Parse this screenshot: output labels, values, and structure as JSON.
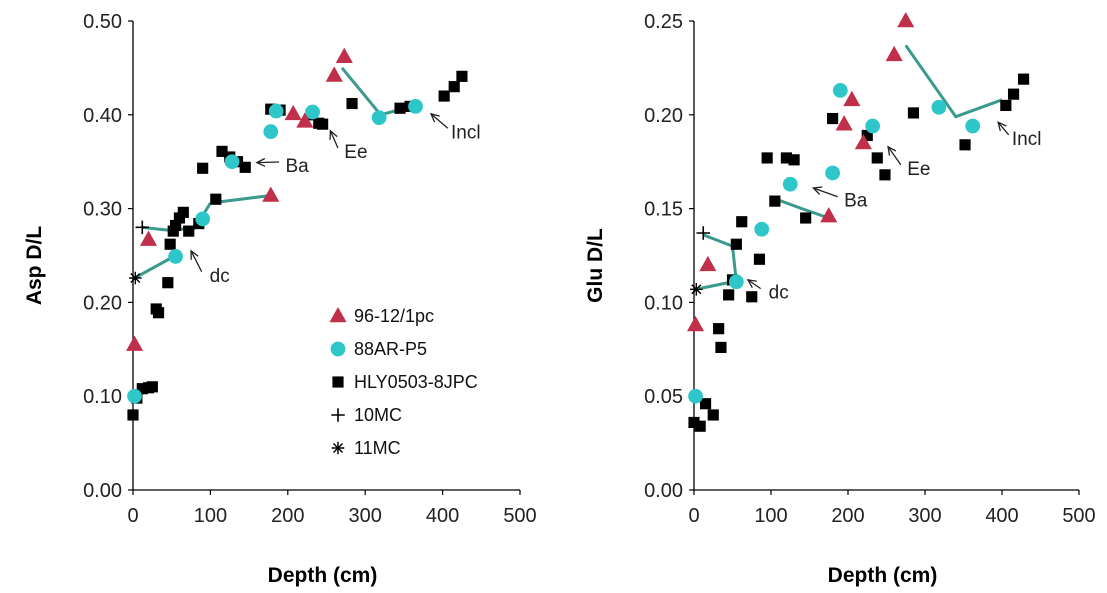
{
  "chart_data": [
    {
      "type": "scatter",
      "xlabel": "Depth (cm)",
      "ylabel": "Asp D/L",
      "xlim": [
        0,
        500
      ],
      "ylim": [
        0.0,
        0.5
      ],
      "x_ticks": [
        0,
        100,
        200,
        300,
        400,
        500
      ],
      "y_ticks": [
        "0.00",
        "0.10",
        "0.20",
        "0.30",
        "0.40",
        "0.50"
      ],
      "grid": false,
      "legend_position": "bottom-right",
      "series": [
        {
          "name": "96-12/1pc",
          "marker": "triangle",
          "color": "#c0304a",
          "points": [
            [
              2,
              0.155
            ],
            [
              20,
              0.267
            ],
            [
              178,
              0.314
            ],
            [
              207,
              0.401
            ],
            [
              222,
              0.393
            ],
            [
              260,
              0.442
            ],
            [
              273,
              0.462
            ]
          ]
        },
        {
          "name": "88AR-P5",
          "marker": "circle",
          "color": "#2ec6c8",
          "points": [
            [
              2,
              0.1
            ],
            [
              55,
              0.249
            ],
            [
              90,
              0.289
            ],
            [
              128,
              0.35
            ],
            [
              178,
              0.382
            ],
            [
              185,
              0.404
            ],
            [
              232,
              0.403
            ],
            [
              318,
              0.397
            ],
            [
              365,
              0.409
            ]
          ]
        },
        {
          "name": "HLY0503-8JPC",
          "marker": "square",
          "color": "#000000",
          "points": [
            [
              0,
              0.08
            ],
            [
              5,
              0.098
            ],
            [
              12,
              0.108
            ],
            [
              20,
              0.109
            ],
            [
              25,
              0.11
            ],
            [
              30,
              0.193
            ],
            [
              33,
              0.189
            ],
            [
              45,
              0.221
            ],
            [
              48,
              0.262
            ],
            [
              52,
              0.276
            ],
            [
              55,
              0.282
            ],
            [
              60,
              0.29
            ],
            [
              65,
              0.296
            ],
            [
              72,
              0.276
            ],
            [
              85,
              0.284
            ],
            [
              90,
              0.343
            ],
            [
              107,
              0.31
            ],
            [
              115,
              0.361
            ],
            [
              125,
              0.355
            ],
            [
              135,
              0.35
            ],
            [
              145,
              0.344
            ],
            [
              178,
              0.406
            ],
            [
              190,
              0.405
            ],
            [
              230,
              0.4
            ],
            [
              240,
              0.391
            ],
            [
              245,
              0.39
            ],
            [
              283,
              0.412
            ],
            [
              345,
              0.407
            ],
            [
              358,
              0.409
            ],
            [
              402,
              0.42
            ],
            [
              415,
              0.43
            ],
            [
              425,
              0.441
            ]
          ]
        },
        {
          "name": "10MC",
          "marker": "plus",
          "color": "#000000",
          "points": [
            [
              12,
              0.28
            ]
          ]
        },
        {
          "name": "11MC",
          "marker": "star",
          "color": "#000000",
          "points": [
            [
              3,
              0.226
            ]
          ]
        }
      ],
      "trend_segments": [
        [
          [
            2,
            0.226
          ],
          [
            55,
            0.25
          ]
        ],
        [
          [
            12,
            0.28
          ],
          [
            45,
            0.277
          ]
        ],
        [
          [
            45,
            0.277
          ],
          [
            80,
            0.279
          ]
        ],
        [
          [
            80,
            0.279
          ],
          [
            100,
            0.306
          ]
        ],
        [
          [
            100,
            0.306
          ],
          [
            178,
            0.314
          ]
        ],
        [
          [
            270,
            0.45
          ],
          [
            320,
            0.4
          ],
          [
            365,
            0.41
          ]
        ]
      ],
      "annotations": [
        {
          "text": "dc",
          "x": 112,
          "y": 0.222,
          "arrow_to": [
            75,
            0.255
          ]
        },
        {
          "text": "Ba",
          "x": 212,
          "y": 0.339,
          "arrow_to": [
            160,
            0.349
          ]
        },
        {
          "text": "Ee",
          "x": 288,
          "y": 0.354,
          "arrow_to": [
            255,
            0.383
          ]
        },
        {
          "text": "Incl",
          "x": 430,
          "y": 0.375,
          "arrow_to": [
            385,
            0.401
          ]
        }
      ]
    },
    {
      "type": "scatter",
      "xlabel": "Depth (cm)",
      "ylabel": "Glu D/L",
      "xlim": [
        0,
        500
      ],
      "ylim": [
        0.0,
        0.25
      ],
      "x_ticks": [
        0,
        100,
        200,
        300,
        400,
        500
      ],
      "y_ticks": [
        "0.00",
        "0.05",
        "0.10",
        "0.15",
        "0.20",
        "0.25"
      ],
      "grid": false,
      "series": [
        {
          "name": "96-12/1pc",
          "marker": "triangle",
          "color": "#c0304a",
          "points": [
            [
              2,
              0.088
            ],
            [
              18,
              0.12
            ],
            [
              175,
              0.146
            ],
            [
              195,
              0.195
            ],
            [
              205,
              0.208
            ],
            [
              220,
              0.185
            ],
            [
              260,
              0.232
            ],
            [
              275,
              0.25
            ]
          ]
        },
        {
          "name": "88AR-P5",
          "marker": "circle",
          "color": "#2ec6c8",
          "points": [
            [
              2,
              0.05
            ],
            [
              55,
              0.111
            ],
            [
              88,
              0.139
            ],
            [
              125,
              0.163
            ],
            [
              180,
              0.169
            ],
            [
              190,
              0.213
            ],
            [
              232,
              0.194
            ],
            [
              318,
              0.204
            ],
            [
              362,
              0.194
            ]
          ]
        },
        {
          "name": "HLY0503-8JPC",
          "marker": "square",
          "color": "#000000",
          "points": [
            [
              0,
              0.036
            ],
            [
              8,
              0.034
            ],
            [
              15,
              0.046
            ],
            [
              25,
              0.04
            ],
            [
              32,
              0.086
            ],
            [
              35,
              0.076
            ],
            [
              45,
              0.104
            ],
            [
              50,
              0.112
            ],
            [
              55,
              0.131
            ],
            [
              62,
              0.143
            ],
            [
              75,
              0.103
            ],
            [
              85,
              0.123
            ],
            [
              95,
              0.177
            ],
            [
              105,
              0.154
            ],
            [
              120,
              0.177
            ],
            [
              130,
              0.176
            ],
            [
              145,
              0.145
            ],
            [
              180,
              0.198
            ],
            [
              225,
              0.189
            ],
            [
              238,
              0.177
            ],
            [
              248,
              0.168
            ],
            [
              285,
              0.201
            ],
            [
              352,
              0.184
            ],
            [
              405,
              0.205
            ],
            [
              415,
              0.211
            ],
            [
              428,
              0.219
            ]
          ]
        },
        {
          "name": "10MC",
          "marker": "plus",
          "color": "#000000",
          "points": [
            [
              12,
              0.137
            ]
          ]
        },
        {
          "name": "11MC",
          "marker": "star",
          "color": "#000000",
          "points": [
            [
              3,
              0.107
            ]
          ]
        }
      ],
      "trend_segments": [
        [
          [
            3,
            0.107
          ],
          [
            50,
            0.111
          ]
        ],
        [
          [
            12,
            0.136
          ],
          [
            50,
            0.13
          ]
        ],
        [
          [
            50,
            0.13
          ],
          [
            55,
            0.111
          ]
        ],
        [
          [
            100,
            0.156
          ],
          [
            140,
            0.15
          ],
          [
            175,
            0.145
          ]
        ],
        [
          [
            275,
            0.237
          ],
          [
            340,
            0.199
          ],
          [
            400,
            0.208
          ]
        ]
      ],
      "annotations": [
        {
          "text": "dc",
          "x": 110,
          "y": 0.102,
          "arrow_to": [
            70,
            0.112
          ]
        },
        {
          "text": "Ba",
          "x": 210,
          "y": 0.151,
          "arrow_to": [
            155,
            0.161
          ]
        },
        {
          "text": "Ee",
          "x": 292,
          "y": 0.168,
          "arrow_to": [
            252,
            0.183
          ]
        },
        {
          "text": "Incl",
          "x": 432,
          "y": 0.184,
          "arrow_to": [
            395,
            0.196
          ]
        }
      ]
    }
  ]
}
